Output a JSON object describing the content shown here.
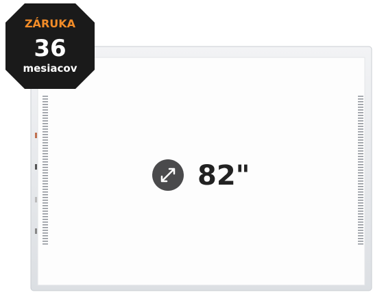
{
  "badge": {
    "label": "ZÁRUKA",
    "number": "36",
    "unit": "mesiacov"
  },
  "size_label": "82\""
}
